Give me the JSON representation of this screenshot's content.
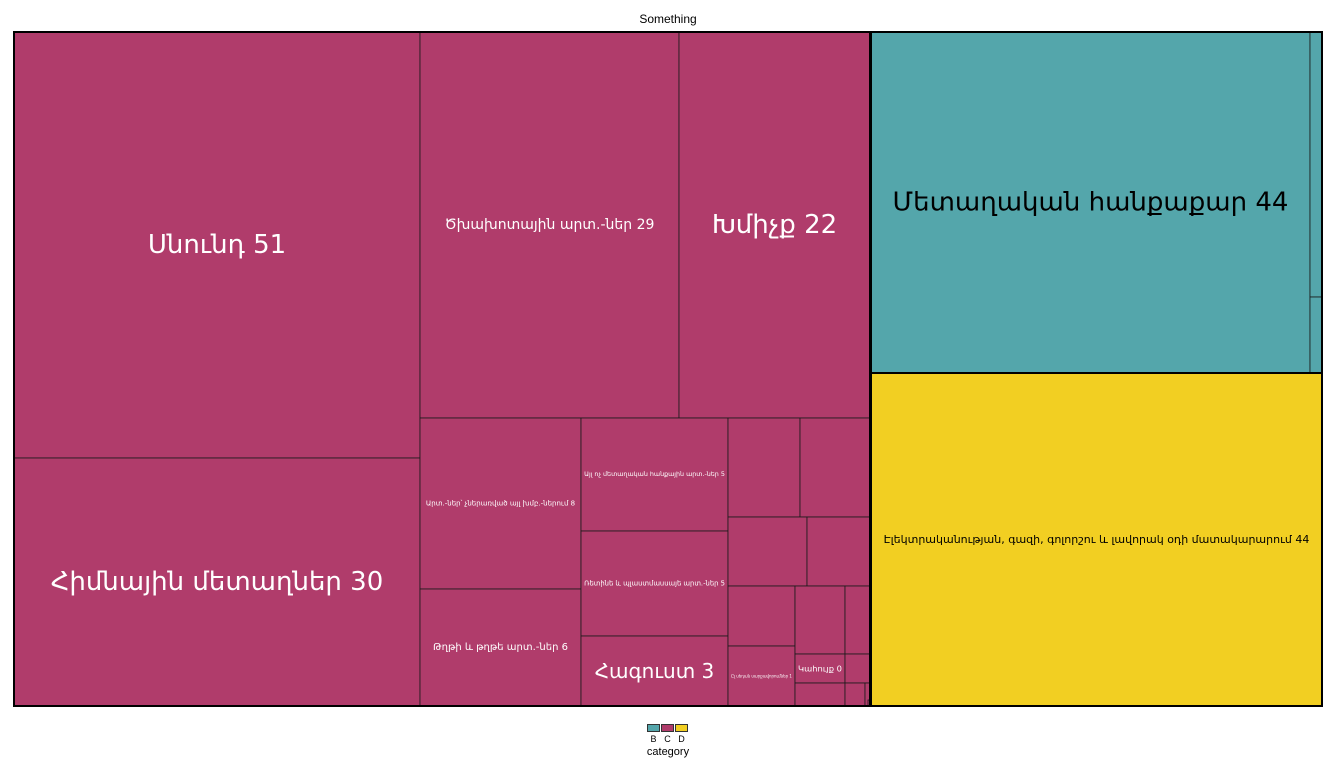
{
  "chart_data": {
    "type": "treemap",
    "title": "Something",
    "legend": {
      "title": "category",
      "position": "bottom",
      "entries": [
        {
          "label": "B",
          "color": "#54a6ab"
        },
        {
          "label": "C",
          "color": "#b03c6b"
        },
        {
          "label": "D",
          "color": "#f2cf22"
        }
      ]
    },
    "categories": [
      {
        "name": "C",
        "color": "#b03c6b",
        "text_color": "#ffffff",
        "items": [
          {
            "label": "Սնունդ 51",
            "name": "Սնունդ",
            "value": 51
          },
          {
            "label": "Հիմնային մետաղներ 30",
            "name": "Հիմնային մետաղներ",
            "value": 30
          },
          {
            "label": "Ծխախոտային արտ.-ներ 29",
            "name": "Ծխախոտային արտ.-ներ",
            "value": 29
          },
          {
            "label": "Խմիչք 22",
            "name": "Խմիչք",
            "value": 22
          },
          {
            "label": "Արտ.-ներ՝ չներառված այլ խմբ.-ներում 8",
            "name": "Արտ.-ներ՝ չներառված այլ խմբ.-ներում",
            "value": 8
          },
          {
            "label": "Թղթի և թղթե արտ.-ներ 6",
            "name": "Թղթի և թղթե արտ.-ներ",
            "value": 6
          },
          {
            "label": "Այլ ոչ մետաղական հանքային արտ.-ներ 5",
            "name": "Այլ ոչ մետաղական հանքային արտ.-ներ",
            "value": 5
          },
          {
            "label": "Ռետինե և պլաստմասսայե արտ.-ներ 5",
            "name": "Ռետինե և պլաստմասսայե արտ.-ներ",
            "value": 5
          },
          {
            "label": "Հագուստ 3",
            "name": "Հագուստ",
            "value": 3
          },
          {
            "label": "",
            "value": 2
          },
          {
            "label": "",
            "value": 1.5
          },
          {
            "label": "",
            "value": 1.5
          },
          {
            "label": "",
            "value": 1
          },
          {
            "label": "",
            "value": 1
          },
          {
            "label": "Ըլ սեդան սարքավորումներ 1",
            "value": 1
          },
          {
            "label": "",
            "value": 0.8
          },
          {
            "label": "",
            "value": 0.4
          },
          {
            "label": "Կահույք 0",
            "name": "Կահույք",
            "value": 0.4
          },
          {
            "label": "",
            "value": 0.3
          },
          {
            "label": "",
            "value": 0.2
          },
          {
            "label": "",
            "value": 0.15
          },
          {
            "label": "",
            "value": 0.1
          },
          {
            "label": "",
            "value": 0.05
          }
        ]
      },
      {
        "name": "B",
        "color": "#54a6ab",
        "text_color": "#000000",
        "items": [
          {
            "label": "Մետաղական հանքաքար 44",
            "name": "Մետաղական հանքաքար",
            "value": 44
          },
          {
            "label": "",
            "value": 1
          },
          {
            "label": "",
            "value": 0.3
          }
        ]
      },
      {
        "name": "D",
        "color": "#f2cf22",
        "text_color": "#000000",
        "items": [
          {
            "label": "Էլեկտրականության, գազի, գոլորշու և լավորակ օդի մատակարարում 44",
            "name": "Էլեկտրականության, գազի, գոլորշու և լավորակ օդի մատակարարում",
            "value": 44
          }
        ]
      }
    ]
  }
}
